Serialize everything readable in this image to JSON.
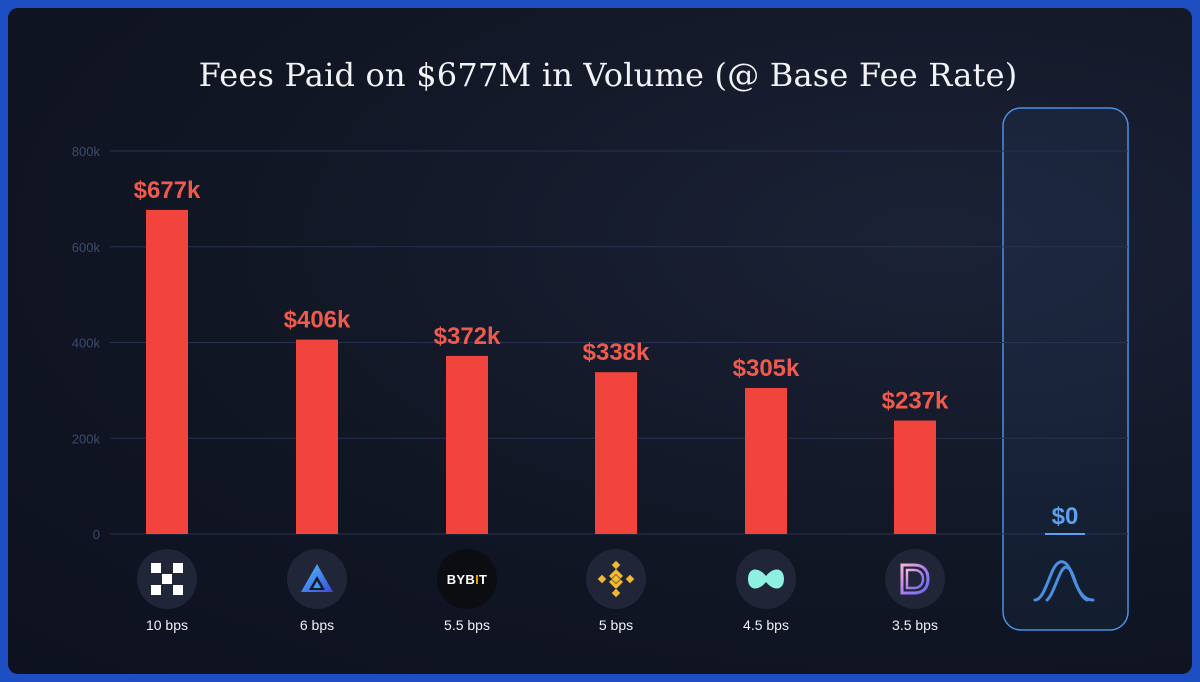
{
  "chart_data": {
    "type": "bar",
    "title": "Fees Paid on $677M in Volume (@ Base Fee Rate)",
    "y_ticks": [
      "0",
      "200k",
      "400k",
      "600k",
      "800k"
    ],
    "ylim": [
      0,
      800000
    ],
    "grid": true,
    "categories": [
      "10 bps",
      "6 bps",
      "5.5 bps",
      "5 bps",
      "4.5 bps",
      "3.5 bps",
      ""
    ],
    "values": [
      677000,
      406000,
      372000,
      338000,
      305000,
      237000,
      0
    ],
    "value_labels": [
      "$677k",
      "$406k",
      "$372k",
      "$338k",
      "$305k",
      "$237k",
      "$0"
    ],
    "category_icons": [
      "okx-logo-icon",
      "gemini-triangle-logo-icon",
      "bybit-logo-icon",
      "binance-logo-icon",
      "swirl-logo-icon",
      "layered-d-logo-icon",
      "mountain-wave-logo-icon"
    ],
    "highlight_index": 6,
    "colors": {
      "bar": "#f0443c",
      "value_label": "#f05a4c",
      "highlight": "#4a90e2",
      "highlight_label": "#5ea0ee",
      "grid": "#263250",
      "tick_label": "#3b4b6c"
    }
  },
  "logos": {
    "bybit_text_a": "BYB",
    "bybit_text_b": "I",
    "bybit_text_c": "T"
  }
}
